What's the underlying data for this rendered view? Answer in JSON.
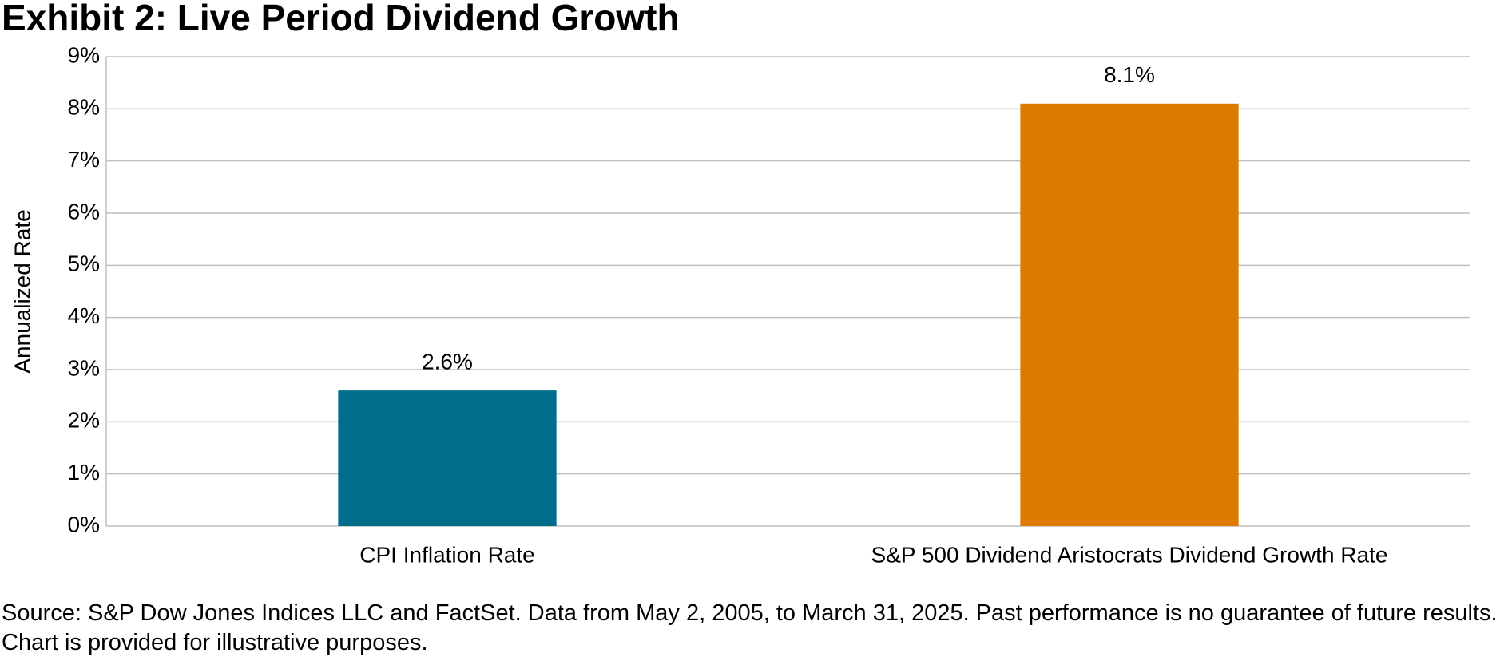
{
  "chart_data": {
    "type": "bar",
    "title": "Exhibit 2: Live Period Dividend Growth",
    "y_label": "Annualized Rate",
    "categories": [
      "CPI Inflation Rate",
      "S&P 500 Dividend Aristocrats Dividend Growth Rate"
    ],
    "values": [
      2.6,
      8.1
    ],
    "value_labels": [
      "2.6%",
      "8.1%"
    ],
    "colors": [
      "#006e8a",
      "#dd7a00"
    ],
    "ylim": [
      0,
      9
    ],
    "yticks": [
      {
        "value": 0,
        "label": "0%"
      },
      {
        "value": 1,
        "label": "1%"
      },
      {
        "value": 2,
        "label": "2%"
      },
      {
        "value": 3,
        "label": "3%"
      },
      {
        "value": 4,
        "label": "4%"
      },
      {
        "value": 5,
        "label": "5%"
      },
      {
        "value": 6,
        "label": "6%"
      },
      {
        "value": 7,
        "label": "7%"
      },
      {
        "value": 8,
        "label": "8%"
      },
      {
        "value": 9,
        "label": "9%"
      }
    ],
    "grid": true,
    "source": "Source: S&P Dow Jones Indices LLC and FactSet. Data from May 2, 2005, to March 31, 2025. Past performance is no guarantee of future results. Chart is provided for illustrative purposes."
  }
}
